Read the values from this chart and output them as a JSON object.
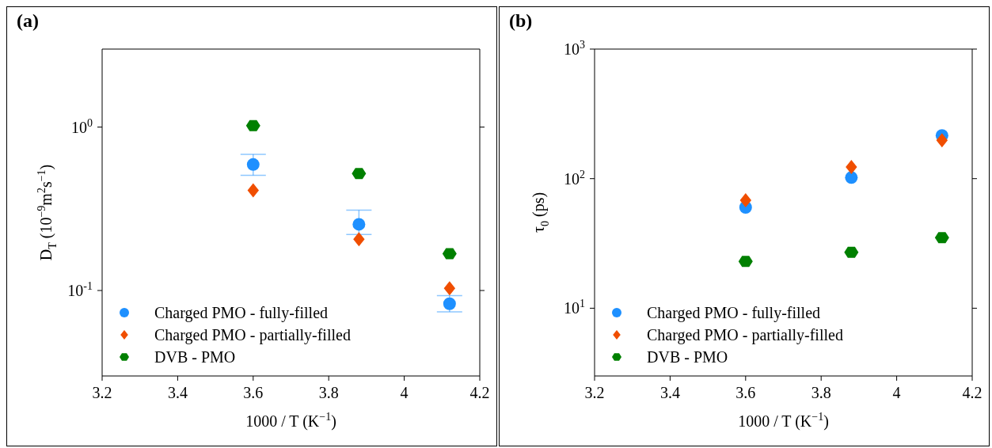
{
  "chart_data": [
    {
      "type": "scatter",
      "title": "(a)",
      "xlabel": "1000 / T (K$^{−1}$)",
      "ylabel": "D$_{T}$ (10$^{−9}$m$^{2}$s$^{−1}$)",
      "x": [
        3.6,
        3.88,
        4.12
      ],
      "xlim": [
        3.2,
        4.2
      ],
      "xticks": [
        3.2,
        3.4,
        3.6,
        3.8,
        4,
        4.2
      ],
      "ylim": [
        0.03,
        3
      ],
      "log": "y",
      "yticks": [
        {
          "value": 0.1,
          "label": "10$^{-1}$"
        },
        {
          "value": 1,
          "label": "10$^{0}$"
        }
      ],
      "legend": "bottom left",
      "grid": false,
      "series": [
        {
          "name": "Charged PMO - fully-filled",
          "color": "#1e90ff",
          "marker": "circle",
          "values": [
            0.59,
            0.254,
            0.083
          ],
          "errors": [
            [
              0.507,
              0.68
            ],
            [
              0.22,
              0.31
            ],
            [
              0.074,
              0.093
            ]
          ]
        },
        {
          "name": "Charged PMO - partially-filled",
          "color": "#f04e00",
          "marker": "diamond",
          "values": [
            0.41,
            0.206,
            0.103
          ]
        },
        {
          "name": "DVB - PMO",
          "color": "#008000",
          "values": [
            1.02,
            0.52,
            0.168
          ]
        }
      ]
    },
    {
      "type": "scatter",
      "title": "(b)",
      "xlabel": "1000 / T (K$^{−1}$)",
      "ylabel": "τ$_{0}$ (ps)",
      "x": [
        3.6,
        3.88,
        4.12
      ],
      "xlim": [
        3.2,
        4.2
      ],
      "xticks": [
        3.2,
        3.4,
        3.6,
        3.8,
        4,
        4.2
      ],
      "ylim": [
        3,
        1000
      ],
      "log": "y",
      "yticks": [
        {
          "value": 10,
          "label": "10$^{1}$"
        },
        {
          "value": 100,
          "label": "10$^{2}$"
        },
        {
          "value": 1000,
          "label": "10$^{3}$"
        }
      ],
      "legend": "bottom left",
      "grid": false,
      "series": [
        {
          "name": "Charged PMO - fully-filled",
          "color": "#1e90ff",
          "marker": "circle",
          "values": [
            60,
            102,
            215
          ]
        },
        {
          "name": "Charged PMO - partially-filled",
          "color": "#f04e00",
          "marker": "diamond",
          "values": [
            68,
            123,
            198
          ]
        },
        {
          "name": "DVB - PMO",
          "color": "#008000",
          "values": [
            23,
            27,
            35
          ]
        }
      ]
    }
  ]
}
